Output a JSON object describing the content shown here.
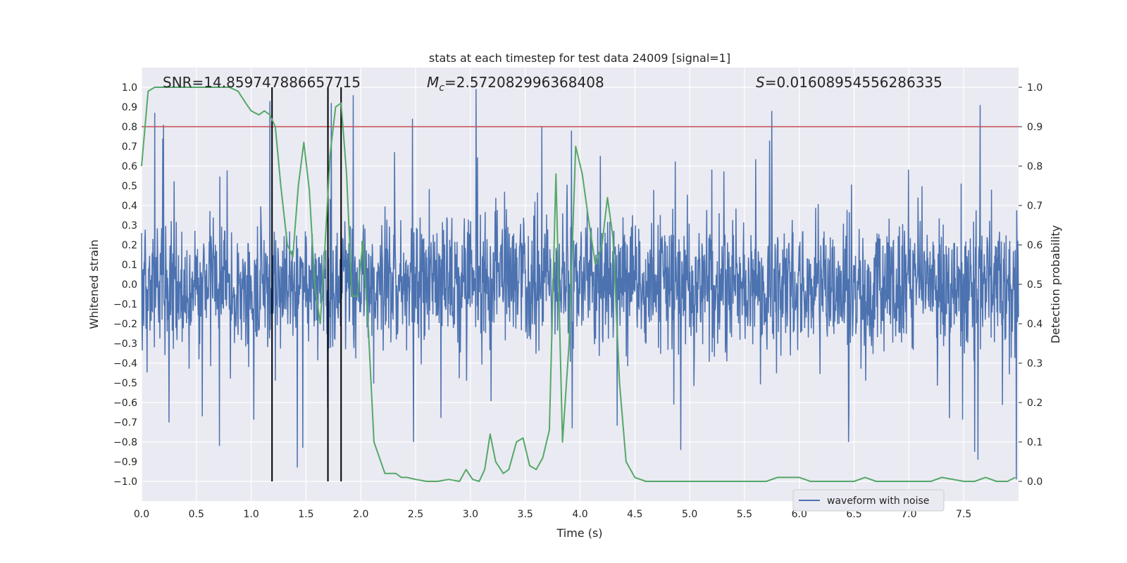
{
  "chart_data": {
    "type": "line",
    "title": "stats at each timestep for test data 24009 [signal=1]",
    "xlabel": "Time (s)",
    "ylabel": "Whitened strain",
    "y2label": "Detection probability",
    "xlim": [
      0.0,
      8.0
    ],
    "ylim": [
      -1.1,
      1.1
    ],
    "y2lim": [
      -0.05,
      1.05
    ],
    "grid": true,
    "x_ticks": [
      "0.0",
      "0.5",
      "1.0",
      "1.5",
      "2.0",
      "2.5",
      "3.0",
      "3.5",
      "4.0",
      "4.5",
      "5.0",
      "5.5",
      "6.0",
      "6.5",
      "7.0",
      "7.5"
    ],
    "y_ticks": [
      "1.0",
      "0.9",
      "0.8",
      "0.7",
      "0.6",
      "0.5",
      "0.4",
      "0.3",
      "0.2",
      "0.1",
      "0.0",
      "-0.1",
      "-0.2",
      "-0.3",
      "-0.4",
      "-0.5",
      "-0.6",
      "-0.7",
      "-0.8",
      "-0.9",
      "-1.0"
    ],
    "y2_ticks": [
      "1.0",
      "0.9",
      "0.8",
      "0.7",
      "0.6",
      "0.5",
      "0.4",
      "0.3",
      "0.2",
      "0.1",
      "0.0"
    ],
    "annotations": {
      "snr": "SNR=14.859747886657715",
      "mc_symbol": "M",
      "mc_sub": "c",
      "mc_value": "=2.572082996368408",
      "s_symbol": "S",
      "s_value": "=0.01608954556286335"
    },
    "threshold": {
      "y2": 0.9,
      "color": "#c44e52"
    },
    "vertical_lines": [
      1.19,
      1.7,
      1.82
    ],
    "series": [
      {
        "name": "waveform with noise",
        "color": "#4c72b0",
        "axis": "left",
        "description": "dense whitened strain noise, mostly within ±0.4, peaks near ±0.8–1.0",
        "seed": 24009,
        "n_points": 2400,
        "spikes": [
          {
            "x": 0.12,
            "y": 0.87
          },
          {
            "x": 0.2,
            "y": 0.81
          },
          {
            "x": 1.17,
            "y": 0.93
          },
          {
            "x": 1.73,
            "y": 0.92
          },
          {
            "x": 1.93,
            "y": 0.96
          },
          {
            "x": 2.47,
            "y": 0.84
          },
          {
            "x": 3.05,
            "y": 0.99
          },
          {
            "x": 3.65,
            "y": 0.8
          },
          {
            "x": 3.92,
            "y": 0.78
          },
          {
            "x": 5.75,
            "y": 0.88
          },
          {
            "x": 7.65,
            "y": 0.91
          },
          {
            "x": 0.71,
            "y": -0.82
          },
          {
            "x": 1.42,
            "y": -0.93
          },
          {
            "x": 1.47,
            "y": -0.83
          },
          {
            "x": 2.48,
            "y": -0.8
          },
          {
            "x": 4.92,
            "y": -0.84
          },
          {
            "x": 6.45,
            "y": -0.8
          },
          {
            "x": 7.6,
            "y": -0.85
          },
          {
            "x": 7.63,
            "y": -0.89
          },
          {
            "x": 7.98,
            "y": -0.99
          }
        ]
      },
      {
        "name": "detection probability",
        "color": "#55a868",
        "axis": "right",
        "x": [
          0.0,
          0.06,
          0.12,
          0.2,
          0.3,
          0.4,
          0.5,
          0.6,
          0.7,
          0.8,
          0.88,
          0.95,
          1.0,
          1.07,
          1.12,
          1.17,
          1.22,
          1.27,
          1.33,
          1.38,
          1.43,
          1.48,
          1.53,
          1.58,
          1.63,
          1.67,
          1.72,
          1.77,
          1.82,
          1.87,
          1.92,
          1.97,
          2.02,
          2.07,
          2.12,
          2.17,
          2.22,
          2.27,
          2.32,
          2.37,
          2.42,
          2.5,
          2.6,
          2.7,
          2.8,
          2.9,
          2.96,
          3.02,
          3.08,
          3.13,
          3.18,
          3.23,
          3.3,
          3.35,
          3.42,
          3.48,
          3.54,
          3.6,
          3.66,
          3.72,
          3.78,
          3.84,
          3.9,
          3.96,
          4.02,
          4.08,
          4.14,
          4.2,
          4.25,
          4.3,
          4.36,
          4.42,
          4.5,
          4.6,
          4.8,
          5.0,
          5.2,
          5.4,
          5.5,
          5.6,
          5.7,
          5.8,
          5.9,
          6.0,
          6.1,
          6.3,
          6.5,
          6.6,
          6.7,
          6.8,
          7.0,
          7.2,
          7.3,
          7.5,
          7.6,
          7.7,
          7.8,
          7.9,
          7.97
        ],
        "values": [
          0.8,
          0.99,
          1.0,
          1.0,
          1.0,
          1.0,
          1.0,
          1.0,
          1.0,
          1.0,
          0.99,
          0.96,
          0.94,
          0.93,
          0.94,
          0.93,
          0.9,
          0.75,
          0.6,
          0.57,
          0.75,
          0.86,
          0.74,
          0.5,
          0.4,
          0.58,
          0.83,
          0.95,
          0.96,
          0.78,
          0.47,
          0.47,
          0.61,
          0.38,
          0.1,
          0.06,
          0.02,
          0.02,
          0.02,
          0.01,
          0.01,
          0.005,
          0.0,
          0.0,
          0.005,
          0.0,
          0.03,
          0.005,
          0.0,
          0.03,
          0.12,
          0.05,
          0.02,
          0.03,
          0.1,
          0.11,
          0.04,
          0.03,
          0.06,
          0.13,
          0.78,
          0.1,
          0.35,
          0.85,
          0.78,
          0.66,
          0.55,
          0.6,
          0.72,
          0.62,
          0.25,
          0.05,
          0.01,
          0.0,
          0.0,
          0.0,
          0.0,
          0.0,
          0.0,
          0.0,
          0.0,
          0.01,
          0.01,
          0.01,
          0.0,
          0.0,
          0.0,
          0.01,
          0.0,
          0.0,
          0.0,
          0.0,
          0.01,
          0.0,
          0.0,
          0.01,
          0.0,
          0.0,
          0.01
        ]
      }
    ],
    "legend": {
      "position": "lower-center",
      "entries": [
        "waveform with noise"
      ]
    }
  }
}
